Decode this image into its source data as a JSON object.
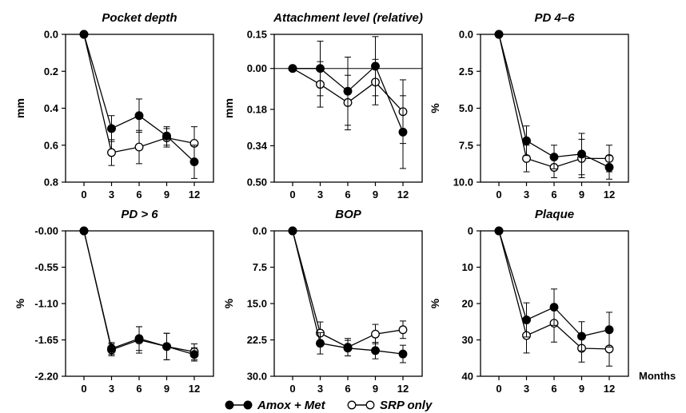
{
  "x_unit": "Months",
  "legend": [
    {
      "label": "Amox + Met",
      "marker": "filled"
    },
    {
      "label": "SRP only",
      "marker": "open"
    }
  ],
  "chart_data": [
    {
      "type": "line",
      "title": "Pocket depth",
      "ylabel": "mm",
      "x": [
        0,
        3,
        6,
        9,
        12
      ],
      "x_tick_labels": [
        "0",
        "3",
        "6",
        "9",
        "12"
      ],
      "y_ticks": [
        0.0,
        0.2,
        0.4,
        0.6,
        0.8
      ],
      "y_tick_labels": [
        "0.0",
        "0.2",
        "0.4",
        "0.6",
        "0.8"
      ],
      "ylim": [
        0.0,
        0.8
      ],
      "y_inverted": true,
      "zero_line": false,
      "series": [
        {
          "name": "Amox + Met",
          "marker": "filled",
          "values": [
            0,
            0.51,
            0.44,
            0.55,
            0.69
          ],
          "errors": [
            0,
            0.07,
            0.09,
            0.05,
            0.09
          ]
        },
        {
          "name": "SRP only",
          "marker": "open",
          "values": [
            0,
            0.64,
            0.61,
            0.56,
            0.59
          ],
          "errors": [
            0,
            0.07,
            0.09,
            0.05,
            0.09
          ]
        }
      ]
    },
    {
      "type": "line",
      "title": "Attachment level (relative)",
      "ylabel": "mm",
      "x": [
        0,
        3,
        6,
        9,
        12
      ],
      "x_tick_labels": [
        "0",
        "3",
        "6",
        "9",
        "12"
      ],
      "y_ticks": [
        0.15,
        0.0,
        -0.18,
        -0.34,
        -0.5
      ],
      "y_tick_labels": [
        "0.15",
        "0.00",
        "0.18",
        "0.34",
        "0.50"
      ],
      "ylim": [
        0.15,
        -0.5
      ],
      "y_inverted": false,
      "zero_line": true,
      "series": [
        {
          "name": "Amox + Met",
          "marker": "filled",
          "values": [
            0,
            0.0,
            -0.1,
            0.01,
            -0.28
          ],
          "errors": [
            0,
            0.12,
            0.15,
            0.13,
            0.16
          ]
        },
        {
          "name": "SRP only",
          "marker": "open",
          "values": [
            0,
            -0.07,
            -0.15,
            -0.06,
            -0.19
          ],
          "errors": [
            0,
            0.1,
            0.12,
            0.1,
            0.14
          ]
        }
      ]
    },
    {
      "type": "line",
      "title": "PD 4–6",
      "ylabel": "%",
      "x": [
        0,
        3,
        6,
        9,
        12
      ],
      "x_tick_labels": [
        "0",
        "3",
        "6",
        "9",
        "12"
      ],
      "y_ticks": [
        0.0,
        2.5,
        5.0,
        7.5,
        10.0
      ],
      "y_tick_labels": [
        "0.0",
        "2.5",
        "5.0",
        "7.5",
        "10.0"
      ],
      "ylim": [
        0.0,
        10.0
      ],
      "y_inverted": true,
      "zero_line": false,
      "series": [
        {
          "name": "Amox + Met",
          "marker": "filled",
          "values": [
            0,
            7.2,
            8.3,
            8.1,
            9.0
          ],
          "errors": [
            0,
            1.0,
            0.8,
            1.4,
            0.8
          ]
        },
        {
          "name": "SRP only",
          "marker": "open",
          "values": [
            0,
            8.4,
            9.0,
            8.4,
            8.4
          ],
          "errors": [
            0,
            0.9,
            0.7,
            1.3,
            0.9
          ]
        }
      ]
    },
    {
      "type": "line",
      "title": "PD > 6",
      "ylabel": "%",
      "x": [
        0,
        3,
        6,
        9,
        12
      ],
      "x_tick_labels": [
        "0",
        "3",
        "6",
        "9",
        "12"
      ],
      "y_ticks": [
        0.0,
        -0.55,
        -1.1,
        -1.65,
        -2.2
      ],
      "y_tick_labels": [
        "-0.00",
        "-0.55",
        "-1.10",
        "-1.65",
        "-2.20"
      ],
      "ylim": [
        0.0,
        -2.2
      ],
      "y_inverted": false,
      "zero_line": false,
      "series": [
        {
          "name": "Amox + Met",
          "marker": "filled",
          "values": [
            0,
            -1.78,
            -1.63,
            -1.75,
            -1.87
          ],
          "errors": [
            0,
            0.09,
            0.18,
            0.2,
            0.1
          ]
        },
        {
          "name": "SRP only",
          "marker": "open",
          "values": [
            0,
            -1.8,
            -1.65,
            -1.75,
            -1.83
          ],
          "errors": [
            0,
            0.09,
            0.2,
            0.2,
            0.12
          ]
        }
      ]
    },
    {
      "type": "line",
      "title": "BOP",
      "ylabel": "%",
      "x": [
        0,
        3,
        6,
        9,
        12
      ],
      "x_tick_labels": [
        "0",
        "3",
        "6",
        "9",
        "12"
      ],
      "y_ticks": [
        0.0,
        7.5,
        15.0,
        22.5,
        30.0
      ],
      "y_tick_labels": [
        "0.0",
        "7.5",
        "15.0",
        "22.5",
        "30.0"
      ],
      "ylim": [
        0.0,
        30.0
      ],
      "y_inverted": true,
      "zero_line": false,
      "series": [
        {
          "name": "Amox + Met",
          "marker": "filled",
          "values": [
            0,
            23.2,
            24.2,
            24.7,
            25.4
          ],
          "errors": [
            0,
            2.2,
            1.6,
            1.7,
            1.8
          ]
        },
        {
          "name": "SRP only",
          "marker": "open",
          "values": [
            0,
            21.1,
            24.0,
            21.3,
            20.4
          ],
          "errors": [
            0,
            2.3,
            1.8,
            2.0,
            1.8
          ]
        }
      ]
    },
    {
      "type": "line",
      "title": "Plaque",
      "ylabel": "%",
      "x": [
        0,
        3,
        6,
        9,
        12
      ],
      "x_tick_labels": [
        "0",
        "3",
        "6",
        "9",
        "12"
      ],
      "y_ticks": [
        0,
        10,
        20,
        30,
        40
      ],
      "y_tick_labels": [
        "0",
        "10",
        "20",
        "30",
        "40"
      ],
      "ylim": [
        0,
        40
      ],
      "y_inverted": true,
      "zero_line": false,
      "series": [
        {
          "name": "Amox + Met",
          "marker": "filled",
          "values": [
            0,
            24.5,
            21.0,
            29.0,
            27.2
          ],
          "errors": [
            0,
            4.7,
            5.0,
            4.0,
            4.8
          ]
        },
        {
          "name": "SRP only",
          "marker": "open",
          "values": [
            0,
            28.8,
            25.4,
            32.3,
            32.5
          ],
          "errors": [
            0,
            4.8,
            5.2,
            3.8,
            4.7
          ]
        }
      ]
    }
  ]
}
